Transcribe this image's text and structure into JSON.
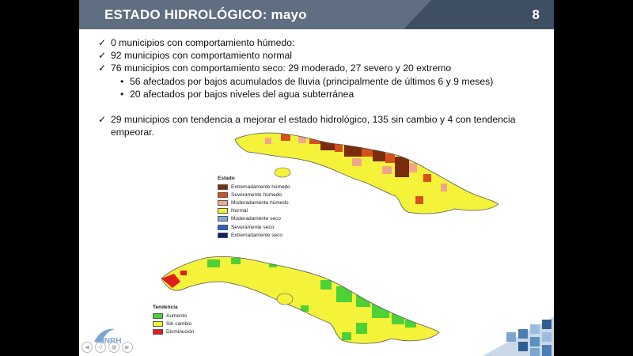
{
  "slide": {
    "title": "ESTADO HIDROLÓGICO: mayo",
    "page_number": "8",
    "bullets": [
      "0 municipios con comportamiento húmedo:",
      "92 municipios con comportamiento normal",
      "76 municipios con comportamiento seco: 29 moderado, 27 severo y  20 extremo"
    ],
    "sub_bullets": [
      "56 afectados por bajos acumulados de lluvia (principalmente de últimos 6 y 9 meses)",
      "20 afectados por bajos niveles del agua subterránea"
    ],
    "trend_line1": "29 municipios con tendencia a mejorar el estado hidrológico, 135 sin cambio y 4 con tendencia",
    "trend_line2": "empeorar."
  },
  "legend_estado": {
    "title": "Estado",
    "items": [
      {
        "label": "Extremadamente húmedo",
        "color": "#7b2c0c"
      },
      {
        "label": "Severamente húmedo",
        "color": "#d4521a"
      },
      {
        "label": "Moderadamente húmedo",
        "color": "#f2a58e"
      },
      {
        "label": "Normal",
        "color": "#f5f23a"
      },
      {
        "label": "Moderadamente seco",
        "color": "#7fa8e0"
      },
      {
        "label": "Severamente seco",
        "color": "#2f62c8"
      },
      {
        "label": "Extremadamente seco",
        "color": "#0d1f6b"
      }
    ]
  },
  "legend_tendencia": {
    "title": "Tendencia",
    "items": [
      {
        "label": "Aumento",
        "color": "#4cd137"
      },
      {
        "label": "Sin cambio",
        "color": "#f5f23a"
      },
      {
        "label": "Disminución",
        "color": "#e21d1d"
      }
    ]
  },
  "logo": {
    "text": "INRH"
  },
  "nav_icons": [
    "prev-icon",
    "back-icon",
    "menu-icon",
    "next-icon"
  ]
}
